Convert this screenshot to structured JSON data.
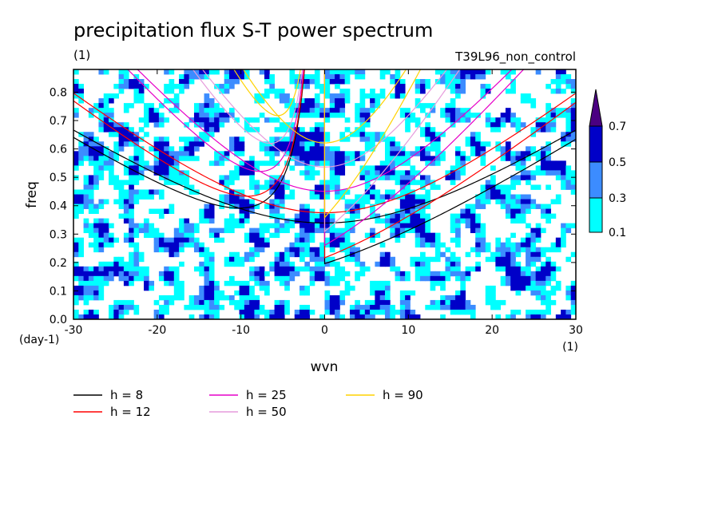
{
  "chart_data": {
    "type": "heatmap",
    "title": "precipitation flux S-T power spectrum",
    "units_left": "(1)",
    "dataset": "T39L96_non_control",
    "xlabel": "wvn",
    "ylabel": "freq",
    "x_unit": "(1)",
    "y_unit": "(day-1)",
    "xlim": [
      -30,
      30
    ],
    "ylim": [
      0,
      0.88
    ],
    "x_ticks": [
      "-30",
      "-20",
      "-10",
      "0",
      "10",
      "20",
      "30"
    ],
    "y_ticks": [
      "0.0",
      "0.1",
      "0.2",
      "0.3",
      "0.4",
      "0.5",
      "0.6",
      "0.7",
      "0.8"
    ],
    "contour_levels": [
      0.1,
      0.3,
      0.5,
      0.7
    ],
    "colorbar": {
      "labels": [
        "0.1",
        "0.3",
        "0.5",
        "0.7"
      ],
      "colors": [
        "#00ffff",
        "#3c8cff",
        "#0000c8",
        "#4b0082"
      ]
    },
    "series": [
      {
        "name": "h =  8",
        "h": 8,
        "color": "#000000"
      },
      {
        "name": "h = 12",
        "h": 12,
        "color": "#ff0000"
      },
      {
        "name": "h = 25",
        "h": 25,
        "color": "#e600c8"
      },
      {
        "name": "h = 50",
        "h": 50,
        "color": "#e69bdc"
      },
      {
        "name": "h = 90",
        "h": 90,
        "color": "#ffd200"
      }
    ]
  }
}
